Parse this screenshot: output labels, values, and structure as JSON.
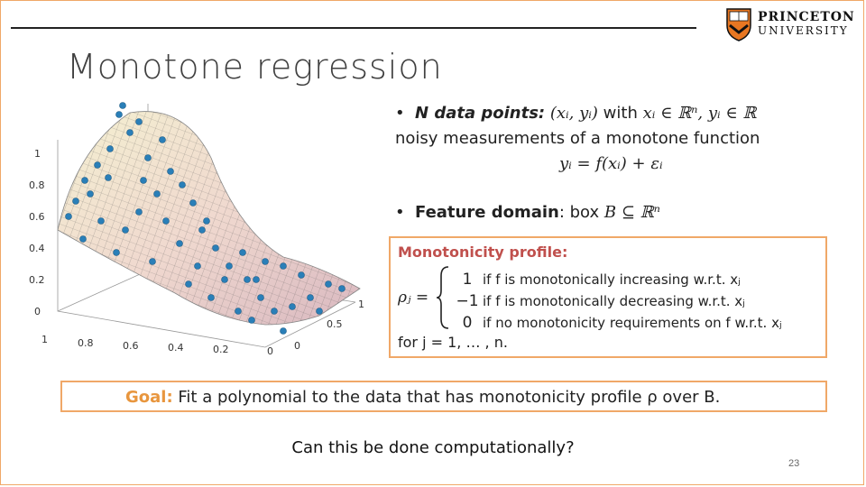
{
  "slide": {
    "title": "Monotone regression",
    "page_number": "23",
    "question": "Can this be done computationally?",
    "accent_color": "#f0a868",
    "logo": {
      "line1": "PRINCETON",
      "line2": "UNIVERSITY"
    }
  },
  "bullets": {
    "b1": {
      "bold": "N data points:",
      "tuple": "(xᵢ, yᵢ)",
      "with": "with",
      "cond": "xᵢ ∈ ℝⁿ, yᵢ ∈ ℝ",
      "line2": "noisy measurements of a monotone function",
      "eq": "yᵢ = f(xᵢ) + εᵢ"
    },
    "b2": {
      "bold": "Feature domain",
      "rest": ": box",
      "math": "B ⊆ ℝⁿ"
    }
  },
  "profile": {
    "title": "Monotonicity profile:",
    "rho": "ρⱼ =",
    "cases": [
      {
        "val": "1",
        "text": "if f is monotonically increasing w.r.t. xⱼ"
      },
      {
        "val": "−1",
        "text": "if f is monotonically decreasing w.r.t. xⱼ"
      },
      {
        "val": "0",
        "text": "if no monotonicity requirements on f w.r.t. xⱼ"
      }
    ],
    "footer": "for j = 1, … , n."
  },
  "goal": {
    "label": "Goal:",
    "text": "Fit a polynomial to the data that has monotonicity profile ρ over B."
  },
  "plot": {
    "z_ticks": [
      "0",
      "0.2",
      "0.4",
      "0.6",
      "0.8",
      "1"
    ],
    "x_ticks": [
      "1",
      "0.8",
      "0.6",
      "0.4",
      "0.2",
      "0"
    ],
    "y_ticks": [
      "0",
      "0.5",
      "1"
    ]
  }
}
